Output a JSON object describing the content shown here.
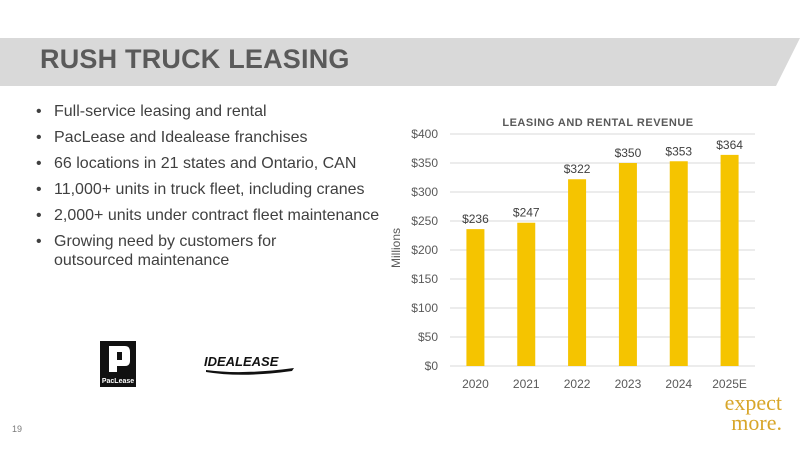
{
  "slide": {
    "title": "RUSH TRUCK LEASING",
    "page_number": "19",
    "brand_line1": "expect",
    "brand_line2": "more.",
    "bullets": [
      "Full-service leasing and rental",
      "PacLease and Idealease franchises",
      "66 locations in 21 states and Ontario, CAN",
      "11,000+ units in truck fleet, including cranes",
      "2,000+ units under contract fleet maintenance",
      "Growing need by customers for outsourced maintenance"
    ],
    "bullet_glyph": "•",
    "logos": {
      "paclease": "PacLease",
      "idealease": "IDEALEASE"
    },
    "colors": {
      "banner": "#d9d9d9",
      "bar": "#f5c400",
      "brand": "#d8a62a"
    }
  },
  "chart_data": {
    "type": "bar",
    "title": "LEASING AND RENTAL REVENUE",
    "ylabel": "Millions",
    "xlabel": "",
    "categories": [
      "2020",
      "2021",
      "2022",
      "2023",
      "2024",
      "2025E"
    ],
    "values": [
      236,
      247,
      322,
      350,
      353,
      364
    ],
    "data_labels": [
      "$236",
      "$247",
      "$322",
      "$350",
      "$353",
      "$364"
    ],
    "ylim": [
      0,
      400
    ],
    "yticks": [
      0,
      50,
      100,
      150,
      200,
      250,
      300,
      350,
      400
    ],
    "ytick_labels": [
      "$0",
      "$50",
      "$100",
      "$150",
      "$200",
      "$250",
      "$300",
      "$350",
      "$400"
    ],
    "grid": true,
    "legend": "none"
  }
}
